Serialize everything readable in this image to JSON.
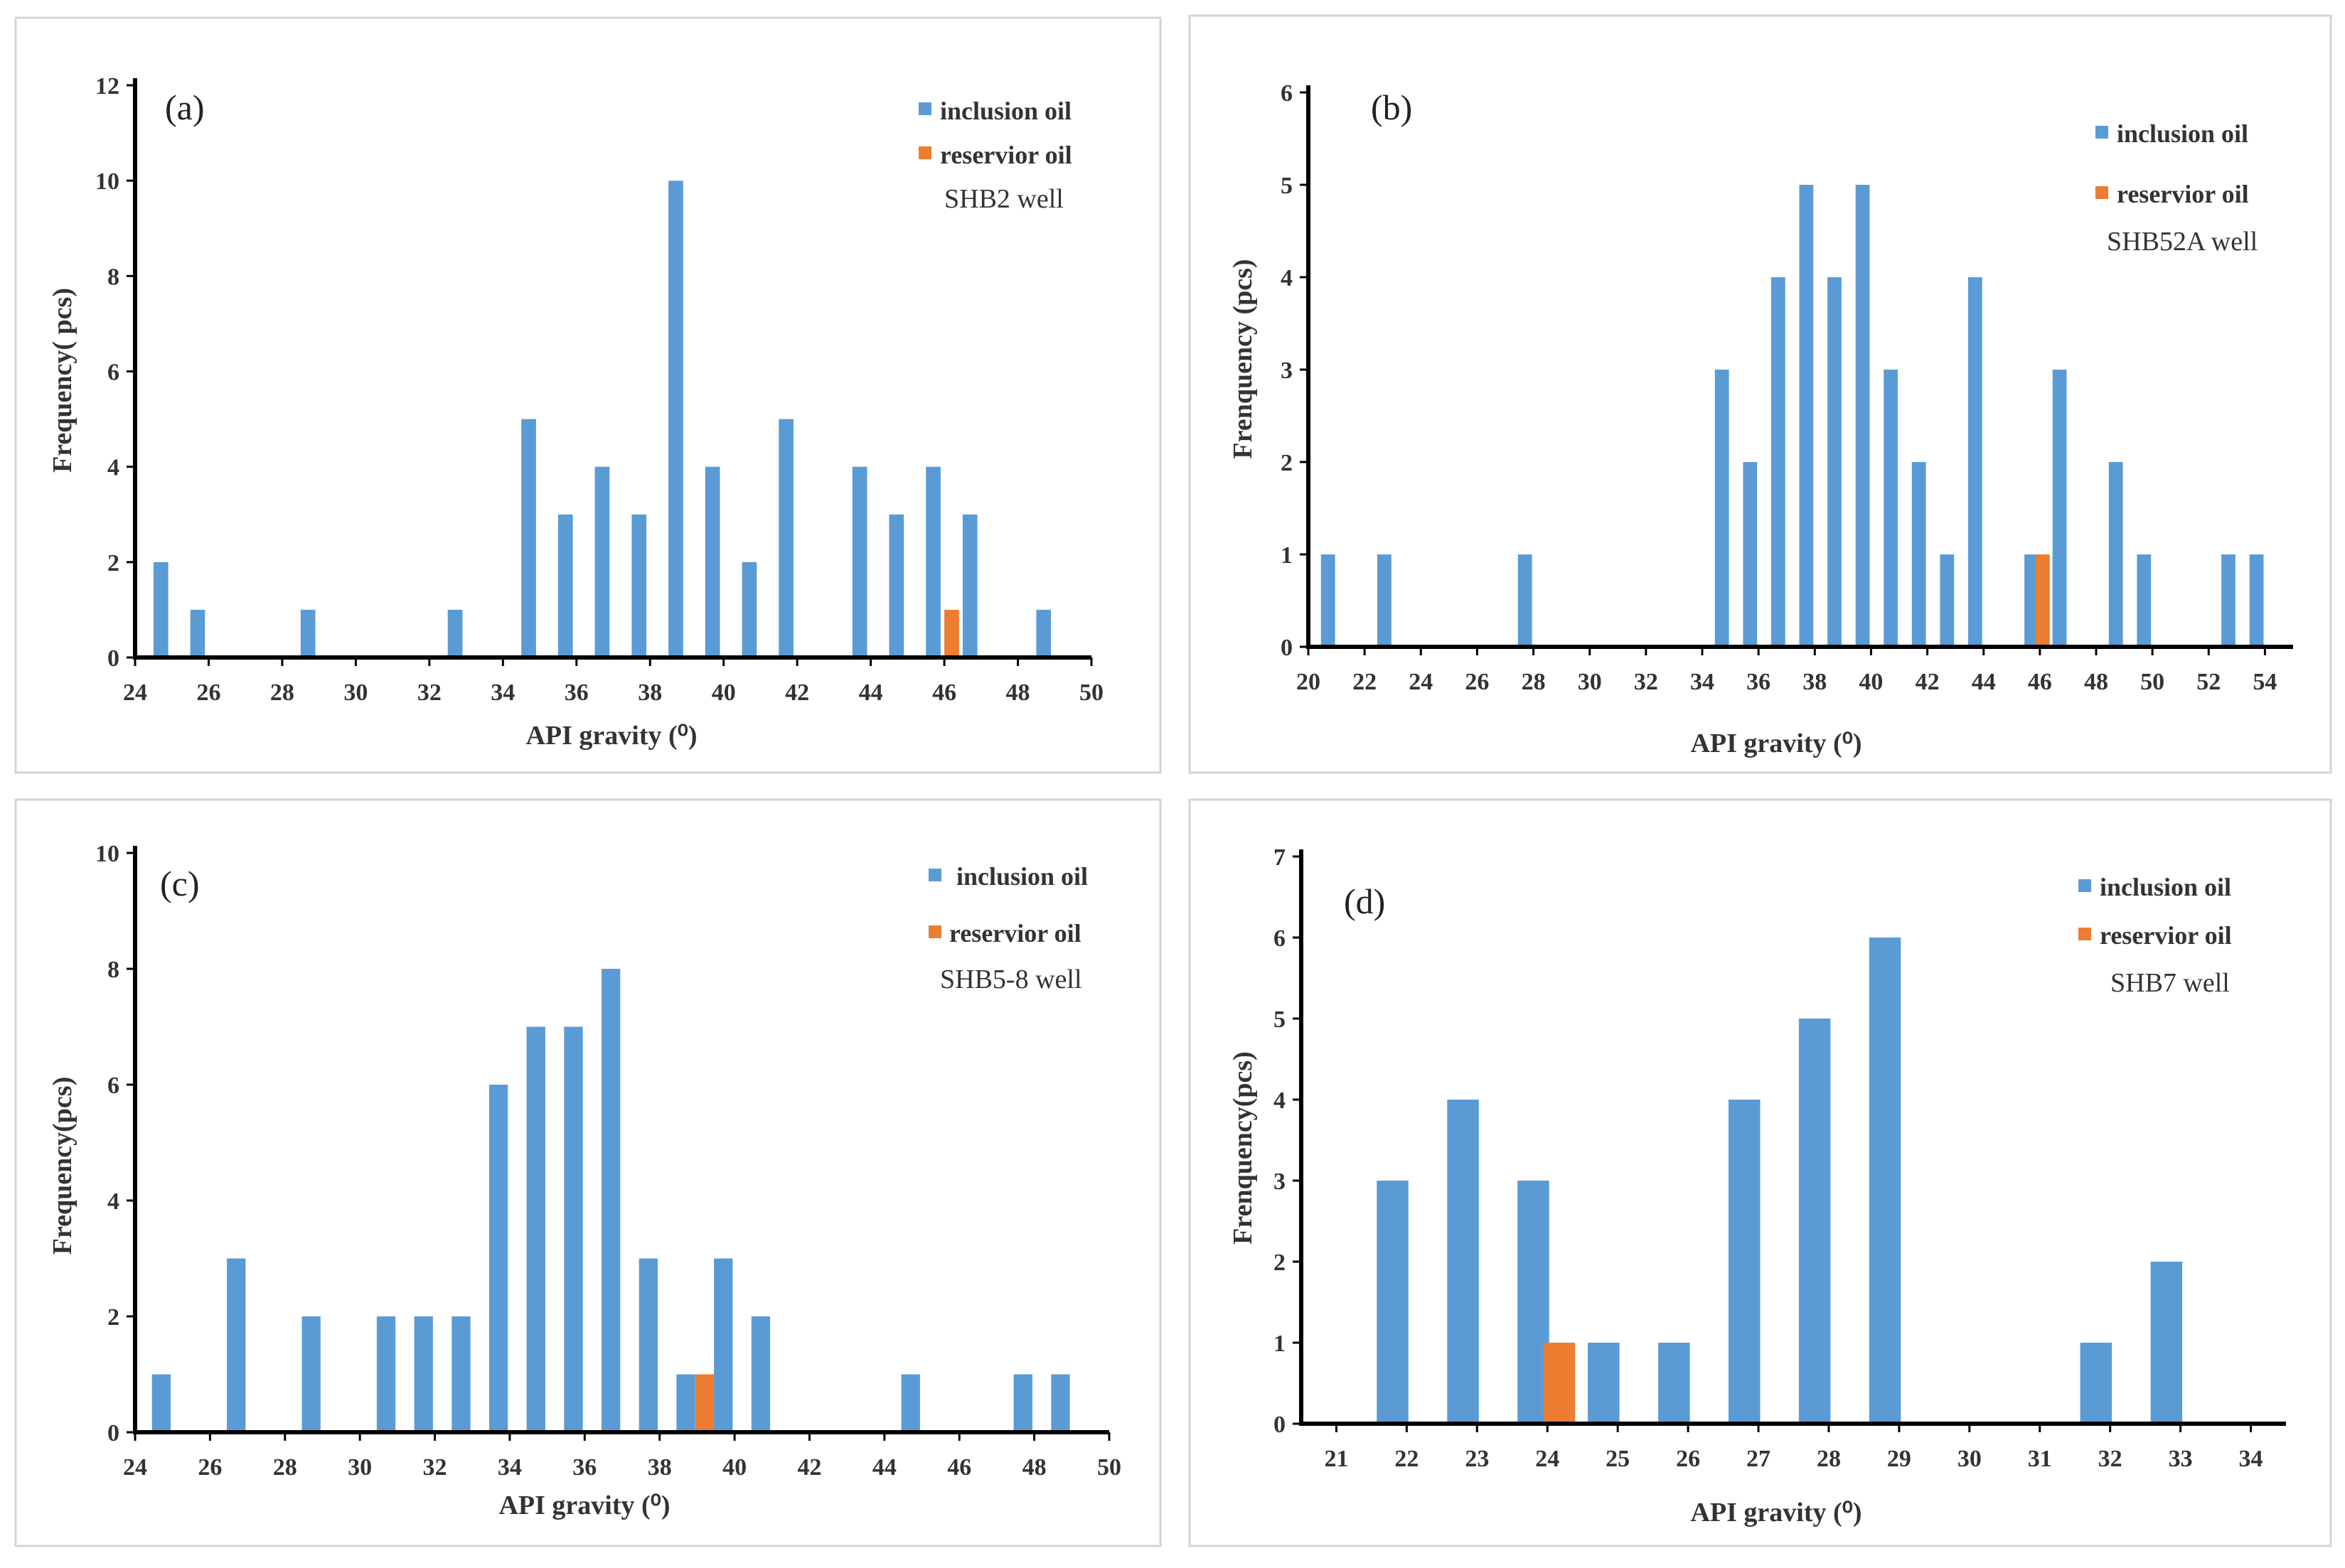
{
  "colors": {
    "inclusion": "#5b9bd5",
    "reservoir": "#ed7d31"
  },
  "chart_data": [
    {
      "type": "bar",
      "panel_label": "(a)",
      "well": "SHB2 well",
      "xlabel": "API gravity (⁰)",
      "ylabel": "Frequency( pcs)",
      "xlim": [
        24,
        50
      ],
      "ylim": [
        0,
        12
      ],
      "xticks": [
        24,
        26,
        28,
        30,
        32,
        34,
        36,
        38,
        40,
        42,
        44,
        46,
        48,
        50
      ],
      "yticks": [
        0,
        2,
        4,
        6,
        8,
        10,
        12
      ],
      "bar_width": 0.4,
      "legend": [
        "inclusion oil",
        "reservior oil"
      ],
      "series": [
        {
          "name": "inclusion oil",
          "color": "#5b9bd5",
          "x": [
            24.7,
            25.7,
            28.7,
            32.7,
            34.7,
            35.7,
            36.7,
            37.7,
            38.7,
            39.7,
            40.7,
            41.7,
            43.7,
            44.7,
            45.7,
            46.7,
            48.7
          ],
          "values": [
            2,
            1,
            1,
            1,
            5,
            3,
            4,
            3,
            10,
            4,
            2,
            5,
            4,
            3,
            4,
            3,
            1
          ]
        },
        {
          "name": "reservior oil",
          "color": "#ed7d31",
          "x": [
            46.2
          ],
          "values": [
            1
          ]
        }
      ]
    },
    {
      "type": "bar",
      "panel_label": "(b)",
      "well": "SHB52A well",
      "xlabel": "API gravity (⁰)",
      "ylabel": "Frenquency (pcs)",
      "xlim": [
        20,
        55
      ],
      "ylim": [
        0,
        6
      ],
      "xticks": [
        20,
        22,
        24,
        26,
        28,
        30,
        32,
        34,
        36,
        38,
        40,
        42,
        44,
        46,
        48,
        50,
        52,
        54
      ],
      "yticks": [
        0,
        1,
        2,
        3,
        4,
        5,
        6
      ],
      "bar_width": 0.5,
      "legend": [
        "inclusion oil",
        "reservior oil"
      ],
      "series": [
        {
          "name": "inclusion oil",
          "color": "#5b9bd5",
          "x": [
            20.7,
            22.7,
            27.7,
            34.7,
            35.7,
            36.7,
            37.7,
            38.7,
            39.7,
            40.7,
            41.7,
            42.7,
            43.7,
            45.7,
            46.7,
            48.7,
            49.7,
            52.7,
            53.7
          ],
          "values": [
            1,
            1,
            1,
            3,
            2,
            4,
            5,
            4,
            5,
            3,
            2,
            1,
            4,
            1,
            3,
            2,
            1,
            1,
            1
          ]
        },
        {
          "name": "reservior oil",
          "color": "#ed7d31",
          "x": [
            46.1
          ],
          "values": [
            1
          ]
        }
      ]
    },
    {
      "type": "bar",
      "panel_label": "(c)",
      "well": "SHB5-8 well",
      "xlabel": "API gravity (⁰)",
      "ylabel": "Frequency(pcs)",
      "xlim": [
        24,
        50
      ],
      "ylim": [
        0,
        10
      ],
      "xticks": [
        24,
        26,
        28,
        30,
        32,
        34,
        36,
        38,
        40,
        42,
        44,
        46,
        48,
        50
      ],
      "yticks": [
        0,
        2,
        4,
        6,
        8,
        10
      ],
      "bar_width": 0.5,
      "legend": [
        "inclusion oil",
        "reservior oil"
      ],
      "series": [
        {
          "name": "inclusion oil",
          "color": "#5b9bd5",
          "x": [
            24.7,
            26.7,
            28.7,
            30.7,
            31.7,
            32.7,
            33.7,
            34.7,
            35.7,
            36.7,
            37.7,
            38.7,
            39.7,
            40.7,
            44.7,
            47.7,
            48.7
          ],
          "values": [
            1,
            3,
            2,
            2,
            2,
            2,
            6,
            7,
            7,
            8,
            3,
            1,
            3,
            2,
            1,
            1,
            1
          ]
        },
        {
          "name": "reservior oil",
          "color": "#ed7d31",
          "x": [
            39.2
          ],
          "values": [
            1
          ]
        }
      ]
    },
    {
      "type": "bar",
      "panel_label": "(d)",
      "well": "SHB7 well",
      "xlabel": "API gravity (⁰)",
      "ylabel": "Frenquency(pcs)",
      "xlim": [
        20.5,
        34.5
      ],
      "ylim": [
        0,
        7
      ],
      "xticks": [
        21,
        22,
        23,
        24,
        25,
        26,
        27,
        28,
        29,
        30,
        31,
        32,
        33,
        34
      ],
      "yticks": [
        0,
        1,
        2,
        3,
        4,
        5,
        6,
        7
      ],
      "bar_width": 0.45,
      "legend": [
        "inclusion oil",
        "reservior oil"
      ],
      "series": [
        {
          "name": "inclusion oil",
          "color": "#5b9bd5",
          "x": [
            21.8,
            22.8,
            23.8,
            24.8,
            25.8,
            26.8,
            27.8,
            28.8,
            31.8,
            32.8
          ],
          "values": [
            3,
            4,
            3,
            1,
            1,
            4,
            5,
            6,
            1,
            2
          ]
        },
        {
          "name": "reservior oil",
          "color": "#ed7d31",
          "x": [
            24.17
          ],
          "values": [
            1
          ]
        }
      ]
    }
  ]
}
